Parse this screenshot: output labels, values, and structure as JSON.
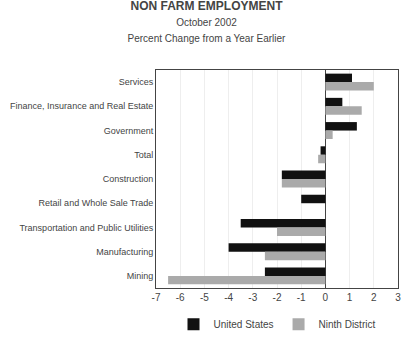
{
  "chart_data": {
    "type": "bar",
    "orientation": "horizontal",
    "title": "NON FARM EMPLOYMENT",
    "subtitle": [
      "October 2002",
      "Percent Change from a Year Earlier"
    ],
    "categories": [
      "Services",
      "Finance, Insurance and Real Estate",
      "Government",
      "Total",
      "Construction",
      "Retail and Whole Sale Trade",
      "Transportation and Public Utilities",
      "Manufacturing",
      "Mining"
    ],
    "series": [
      {
        "name": "United States",
        "color": "#111111",
        "values": [
          1.1,
          0.7,
          1.3,
          -0.2,
          -1.8,
          -1.0,
          -3.5,
          -4.0,
          -2.5
        ]
      },
      {
        "name": "Ninth District",
        "color": "#aaaaaa",
        "values": [
          2.0,
          1.5,
          0.3,
          -0.3,
          -1.8,
          0.0,
          -2.0,
          -2.5,
          -6.5
        ]
      }
    ],
    "xlim": [
      -7,
      3
    ],
    "xticks": [
      -7,
      -6,
      -5,
      -4,
      -3,
      -2,
      -1,
      0,
      1,
      2,
      3
    ],
    "grid": true,
    "legend": "bottom"
  }
}
